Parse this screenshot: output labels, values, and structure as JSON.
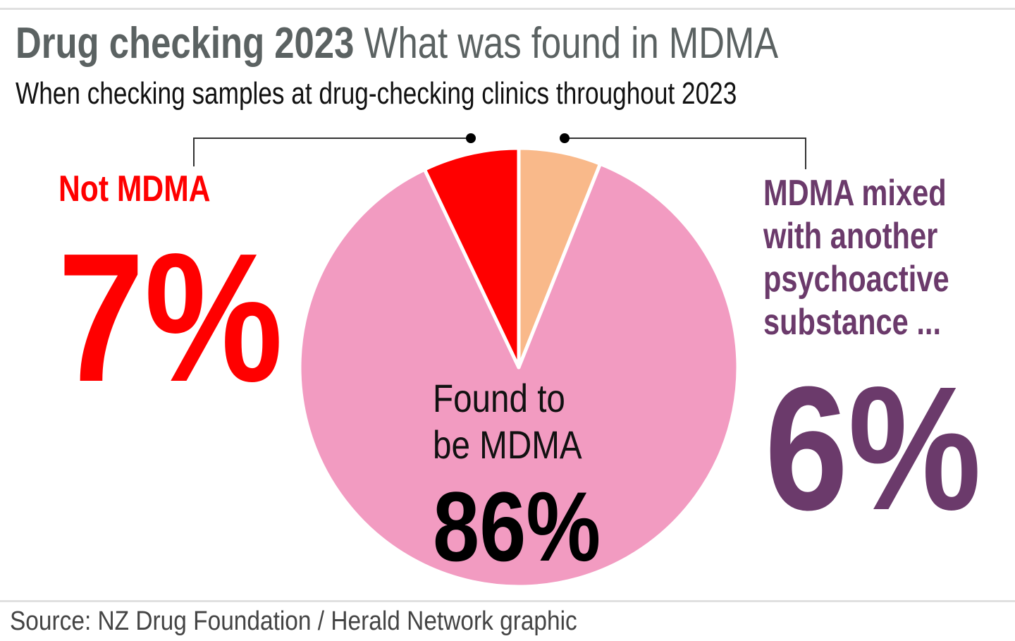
{
  "title_bold": "Drug checking 2023",
  "title_light": "What was found in MDMA",
  "subtitle": "When checking samples at drug-checking clinics throughout 2023",
  "source": "Source: NZ Drug Foundation / Herald Network graphic",
  "chart_data": {
    "type": "pie",
    "title": "Drug checking 2023 What was found in MDMA",
    "start": "top",
    "slices": [
      {
        "name": "MDMA mixed with another psychoactive substance ...",
        "value": 6,
        "value_label": "6%",
        "color": "#f9b98a",
        "label_color": "#6b3a6b"
      },
      {
        "name": "Found to be MDMA",
        "value": 86,
        "value_label": "86%",
        "color": "#f29bc1",
        "label_color": "#111111"
      },
      {
        "name": "Not MDMA",
        "value": 7,
        "value_label": "7%",
        "color": "#ff0000",
        "label_color": "#ff0000"
      }
    ],
    "labels": {
      "not_mdma": {
        "label": "Not MDMA",
        "value": "7%"
      },
      "mixed": {
        "label_lines": [
          "MDMA mixed",
          "with another",
          "psychoactive",
          "substance ..."
        ],
        "value": "6%"
      },
      "found": {
        "label_lines": [
          "Found to",
          "be MDMA"
        ],
        "value": "86%"
      }
    }
  }
}
